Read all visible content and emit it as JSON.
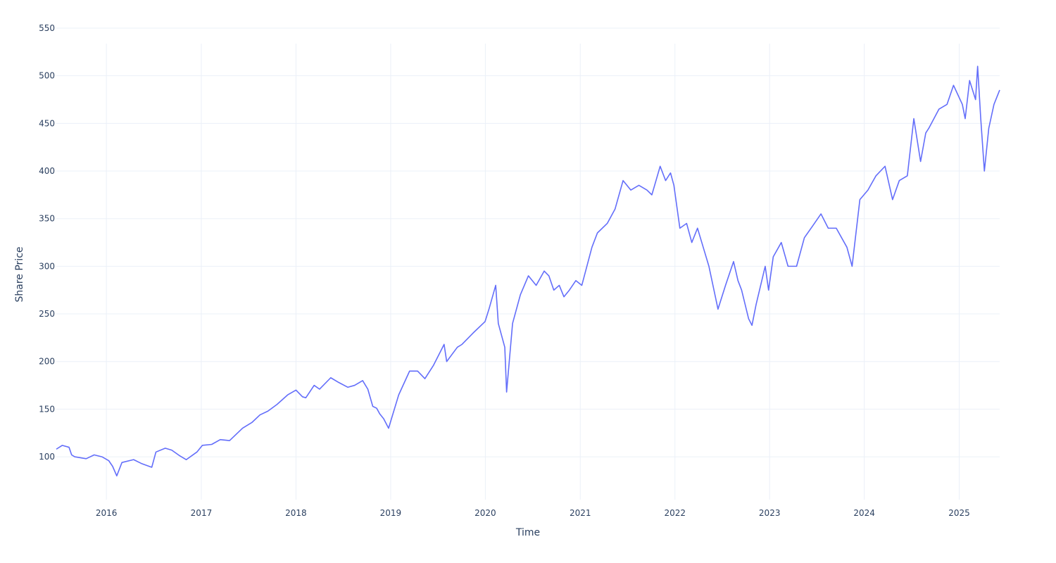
{
  "chart_data": {
    "type": "line",
    "title": "",
    "xlabel": "Time",
    "ylabel": "Share Price",
    "x_range": [
      "2015-06-22",
      "2025-06-06"
    ],
    "ylim": [
      55,
      550
    ],
    "y_ticks": [
      100,
      150,
      200,
      250,
      300,
      350,
      400,
      450,
      500,
      550
    ],
    "x_ticks": [
      "2016",
      "2017",
      "2018",
      "2019",
      "2020",
      "2021",
      "2022",
      "2023",
      "2024",
      "2025"
    ],
    "grid": true,
    "legend": "none",
    "line_color": "#636efa",
    "series": [
      {
        "x": [
          "2015-06-22",
          "2015-07-15",
          "2015-08-10",
          "2015-08-20",
          "2015-09-01",
          "2015-10-15",
          "2015-11-15",
          "2015-12-15",
          "2016-01-10",
          "2016-01-25",
          "2016-02-10",
          "2016-03-01",
          "2016-04-15",
          "2016-05-15",
          "2016-06-24",
          "2016-07-10",
          "2016-08-15",
          "2016-09-09",
          "2016-10-10",
          "2016-11-04",
          "2016-12-15",
          "2017-01-05",
          "2017-02-10",
          "2017-03-15",
          "2017-04-20",
          "2017-06-09",
          "2017-07-15",
          "2017-08-15",
          "2017-09-15",
          "2017-10-20",
          "2017-11-30",
          "2018-01-01",
          "2018-01-26",
          "2018-02-08",
          "2018-03-12",
          "2018-04-02",
          "2018-05-15",
          "2018-06-15",
          "2018-07-20",
          "2018-08-15",
          "2018-09-15",
          "2018-10-05",
          "2018-10-24",
          "2018-11-08",
          "2018-11-20",
          "2018-12-05",
          "2018-12-24",
          "2019-02-01",
          "2019-03-15",
          "2019-04-15",
          "2019-05-13",
          "2019-06-15",
          "2019-07-26",
          "2019-08-05",
          "2019-09-15",
          "2019-10-03",
          "2019-11-15",
          "2019-12-31",
          "2020-01-15",
          "2020-02-10",
          "2020-02-20",
          "2020-03-16",
          "2020-03-23",
          "2020-04-15",
          "2020-05-15",
          "2020-06-15",
          "2020-07-15",
          "2020-08-15",
          "2020-09-02",
          "2020-09-21",
          "2020-10-12",
          "2020-10-30",
          "2020-11-20",
          "2020-12-15",
          "2021-01-07",
          "2021-02-15",
          "2021-03-08",
          "2021-04-15",
          "2021-05-15",
          "2021-06-15",
          "2021-07-15",
          "2021-08-15",
          "2021-09-15",
          "2021-10-04",
          "2021-11-05",
          "2021-11-26",
          "2021-12-15",
          "2021-12-28",
          "2022-01-20",
          "2022-02-15",
          "2022-03-07",
          "2022-03-29",
          "2022-04-20",
          "2022-05-12",
          "2022-06-16",
          "2022-07-15",
          "2022-08-15",
          "2022-09-01",
          "2022-09-15",
          "2022-10-12",
          "2022-10-25",
          "2022-11-10",
          "2022-12-15",
          "2022-12-28",
          "2023-01-15",
          "2023-02-15",
          "2023-03-13",
          "2023-04-15",
          "2023-05-15",
          "2023-06-15",
          "2023-07-18",
          "2023-08-15",
          "2023-09-15",
          "2023-10-26",
          "2023-11-15",
          "2023-12-15",
          "2024-01-15",
          "2024-02-15",
          "2024-03-21",
          "2024-04-19",
          "2024-05-15",
          "2024-06-15",
          "2024-07-10",
          "2024-08-05",
          "2024-08-25",
          "2024-09-06",
          "2024-10-15",
          "2024-11-15",
          "2024-12-10",
          "2025-01-13",
          "2025-01-24",
          "2025-02-10",
          "2025-03-05",
          "2025-03-13",
          "2025-03-25",
          "2025-04-08",
          "2025-04-25",
          "2025-05-15",
          "2025-06-06"
        ],
        "y": [
          108,
          112,
          110,
          102,
          100,
          98,
          102,
          100,
          96,
          90,
          80,
          94,
          97,
          93,
          89,
          105,
          109,
          107,
          101,
          97,
          105,
          112,
          113,
          118,
          117,
          130,
          136,
          144,
          148,
          155,
          165,
          170,
          163,
          162,
          175,
          171,
          183,
          178,
          173,
          175,
          180,
          171,
          153,
          151,
          145,
          140,
          130,
          165,
          190,
          190,
          182,
          196,
          218,
          200,
          215,
          218,
          230,
          242,
          255,
          280,
          240,
          215,
          168,
          240,
          270,
          290,
          280,
          295,
          290,
          275,
          280,
          268,
          275,
          285,
          280,
          320,
          335,
          345,
          360,
          390,
          380,
          385,
          380,
          375,
          405,
          390,
          398,
          385,
          340,
          345,
          325,
          340,
          320,
          300,
          255,
          280,
          305,
          285,
          275,
          245,
          238,
          260,
          300,
          275,
          310,
          325,
          300,
          300,
          330,
          342,
          355,
          340,
          340,
          320,
          300,
          370,
          380,
          395,
          405,
          370,
          390,
          395,
          455,
          410,
          440,
          445,
          465,
          470,
          490,
          470,
          455,
          495,
          475,
          510,
          455,
          400,
          445,
          470,
          485
        ]
      }
    ]
  }
}
